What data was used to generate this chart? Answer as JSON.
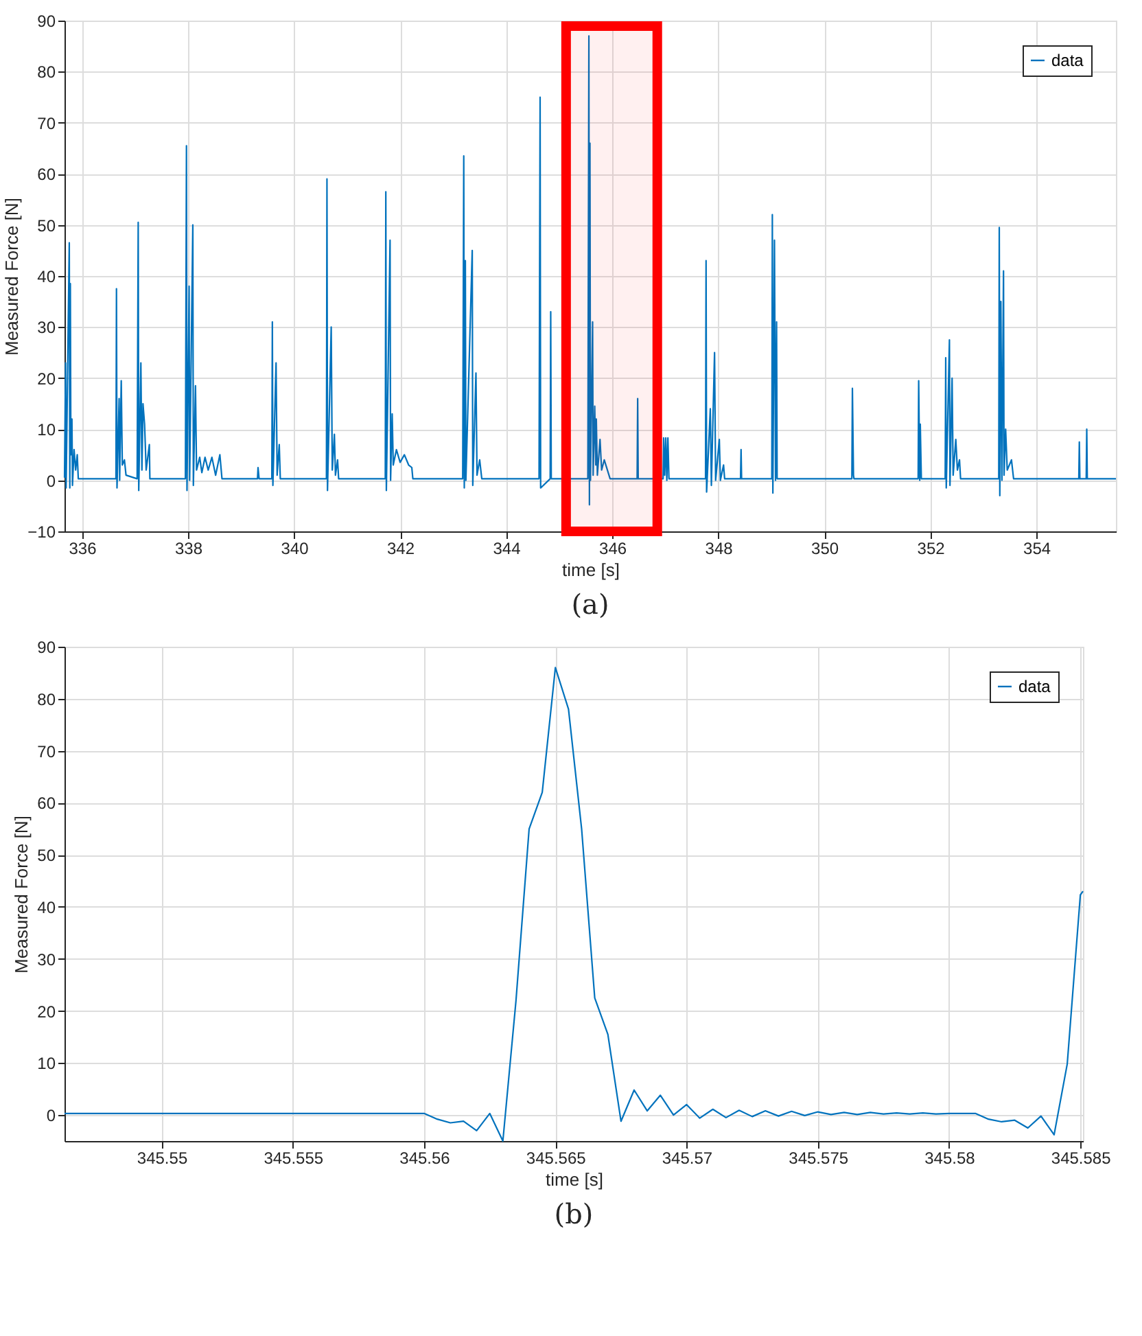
{
  "chart_data": [
    {
      "type": "line",
      "xlabel": "time [s]",
      "ylabel": "Measured Force [N]",
      "annotations": [
        "(a)"
      ],
      "xlim": [
        335.67,
        355.5
      ],
      "ylim": [
        -10,
        90
      ],
      "xticks": [
        336,
        338,
        340,
        342,
        344,
        346,
        348,
        350,
        352,
        354
      ],
      "yticks": [
        -10,
        0,
        10,
        20,
        30,
        40,
        50,
        60,
        70,
        80,
        90
      ],
      "grid": true,
      "legend": "top right",
      "marker": "none",
      "line_style": "solid",
      "bands": [
        {
          "axis": "x",
          "from": 345.13,
          "to": 346.85,
          "color": "#ff0000"
        }
      ],
      "series": [
        {
          "name": "data",
          "color": "#0072bd",
          "x": [
            335.67,
            335.69,
            335.7,
            335.76,
            335.77,
            335.78,
            335.79,
            335.81,
            335.82,
            335.85,
            335.88,
            335.91,
            335.93,
            336.64,
            336.65,
            336.66,
            336.7,
            336.71,
            336.74,
            336.76,
            336.8,
            336.83,
            337.04,
            337.06,
            337.07,
            337.11,
            337.13,
            337.15,
            337.18,
            337.21,
            337.27,
            337.28,
            337.95,
            337.97,
            337.98,
            338.02,
            338.03,
            338.09,
            338.1,
            338.14,
            338.16,
            338.22,
            338.26,
            338.32,
            338.38,
            338.45,
            338.52,
            338.6,
            338.64,
            339.31,
            339.32,
            339.34,
            339.58,
            339.59,
            339.6,
            339.66,
            339.68,
            339.72,
            339.74,
            340.61,
            340.62,
            340.63,
            340.7,
            340.72,
            340.76,
            340.78,
            340.82,
            340.84,
            341.72,
            341.73,
            341.74,
            341.81,
            341.82,
            341.85,
            341.87,
            341.93,
            342.0,
            342.08,
            342.16,
            342.22,
            342.24,
            343.18,
            343.2,
            343.21,
            343.23,
            343.24,
            343.36,
            343.37,
            343.43,
            343.45,
            343.5,
            343.54,
            344.62,
            344.64,
            344.65,
            344.83,
            344.84,
            344.85,
            345.54,
            345.56,
            345.57,
            345.58,
            345.59,
            345.63,
            345.64,
            345.67,
            345.69,
            345.7,
            345.72,
            345.77,
            345.8,
            345.85,
            345.96,
            346.47,
            346.48,
            346.49,
            346.96,
            346.97,
            346.99,
            347.01,
            347.03,
            347.05,
            347.07,
            347.76,
            347.77,
            347.78,
            347.85,
            347.87,
            347.93,
            347.95,
            348.02,
            348.04,
            348.1,
            348.12,
            348.42,
            348.43,
            348.44,
            349.01,
            349.02,
            349.03,
            349.06,
            349.08,
            349.1,
            349.11,
            350.52,
            350.53,
            350.55,
            350.56,
            351.77,
            351.78,
            351.8,
            351.81,
            351.83,
            352.28,
            352.29,
            352.3,
            352.36,
            352.37,
            352.41,
            352.43,
            352.48,
            352.51,
            352.55,
            352.57,
            353.29,
            353.3,
            353.31,
            353.33,
            353.35,
            353.38,
            353.39,
            353.42,
            353.45,
            353.53,
            353.57,
            354.8,
            354.81,
            354.82,
            354.94,
            354.95,
            354.96,
            355.5
          ],
          "values": [
            0.5,
            23,
            -1.5,
            46.5,
            -1.5,
            38.5,
            5,
            12,
            -1,
            6,
            2,
            5,
            0.3,
            0.3,
            37.5,
            -1.5,
            16,
            0,
            19.5,
            3,
            4,
            1,
            0.3,
            50.5,
            -2,
            23,
            2,
            15,
            11,
            2,
            7,
            0.3,
            0.3,
            65.5,
            -2,
            38,
            0,
            50,
            -1,
            18.5,
            2,
            4.5,
            1.5,
            4.5,
            2,
            4.5,
            1,
            5,
            0.3,
            0.3,
            2.5,
            0.3,
            0.3,
            31,
            -1,
            23,
            1,
            7,
            0.3,
            0.3,
            59,
            -2,
            30,
            2,
            9,
            1,
            4,
            0.3,
            0.3,
            56.5,
            -2,
            47,
            0,
            13,
            3,
            6,
            3.5,
            5,
            3,
            2.5,
            0.3,
            0.3,
            63.5,
            -1.5,
            43,
            0,
            45,
            -1,
            21,
            1,
            4,
            0.3,
            0.3,
            75,
            -1.5,
            0.3,
            33,
            0.3,
            0.3,
            87,
            -4.8,
            66,
            0,
            31,
            1,
            14.5,
            3,
            12,
            1,
            8,
            2,
            4,
            0.3,
            0.3,
            16,
            0.3,
            0.3,
            8.3,
            1,
            8.3,
            0,
            8.3,
            0.3,
            0.3,
            43,
            -2.3,
            14,
            -1,
            25,
            0,
            8,
            0,
            3,
            0.3,
            0.3,
            6,
            0.3,
            0.3,
            52,
            -2.5,
            47,
            0,
            31,
            0.3,
            0.3,
            18,
            1,
            0.3,
            0.3,
            19.5,
            0,
            11,
            0.3,
            0.3,
            24,
            -1.5,
            27.5,
            -1,
            20,
            1,
            8,
            2,
            4,
            0.3,
            0.3,
            49.5,
            -3,
            35,
            0,
            41,
            1,
            10,
            2,
            4,
            0.3,
            0.3,
            7.5,
            0.3,
            0.3,
            10,
            0.3,
            0.3
          ]
        }
      ]
    },
    {
      "type": "line",
      "xlabel": "time [s]",
      "ylabel": "Measured Force [N]",
      "annotations": [
        "(b)"
      ],
      "xlim": [
        345.5463,
        345.5851
      ],
      "ylim": [
        -5,
        90
      ],
      "xticks": [
        345.55,
        345.555,
        345.56,
        345.565,
        345.57,
        345.575,
        345.58,
        345.585
      ],
      "yticks": [
        0,
        10,
        20,
        30,
        40,
        50,
        60,
        70,
        80,
        90
      ],
      "grid": true,
      "legend": "top right",
      "marker": "none",
      "line_style": "solid",
      "series": [
        {
          "name": "data",
          "color": "#0072bd",
          "x": [
            345.5463,
            345.55,
            345.555,
            345.56,
            345.5605,
            345.561,
            345.5615,
            345.562,
            345.5625,
            345.563,
            345.5635,
            345.564,
            345.5645,
            345.565,
            345.5655,
            345.566,
            345.5665,
            345.567,
            345.5675,
            345.568,
            345.5685,
            345.569,
            345.5695,
            345.57,
            345.5705,
            345.571,
            345.5715,
            345.572,
            345.5725,
            345.573,
            345.5735,
            345.574,
            345.5745,
            345.575,
            345.5755,
            345.576,
            345.5765,
            345.577,
            345.5775,
            345.578,
            345.5785,
            345.579,
            345.5795,
            345.58,
            345.5805,
            345.581,
            345.5815,
            345.582,
            345.5825,
            345.583,
            345.5835,
            345.584,
            345.5845,
            345.585,
            345.5851
          ],
          "values": [
            0.3,
            0.3,
            0.3,
            0.3,
            -0.8,
            -1.5,
            -1.2,
            -3,
            0.3,
            -5,
            22,
            55,
            62,
            86,
            78,
            55,
            22.5,
            15.5,
            -1.2,
            4.8,
            0.8,
            3.8,
            0,
            2,
            -0.6,
            1.1,
            -0.5,
            0.9,
            -0.3,
            0.8,
            -0.2,
            0.7,
            -0.1,
            0.6,
            0.1,
            0.5,
            0.1,
            0.5,
            0.2,
            0.4,
            0.2,
            0.4,
            0.2,
            0.3,
            0.3,
            0.3,
            -0.8,
            -1.3,
            -1,
            -2.5,
            -0.2,
            -3.8,
            9.8,
            42.3,
            43
          ]
        }
      ]
    }
  ]
}
